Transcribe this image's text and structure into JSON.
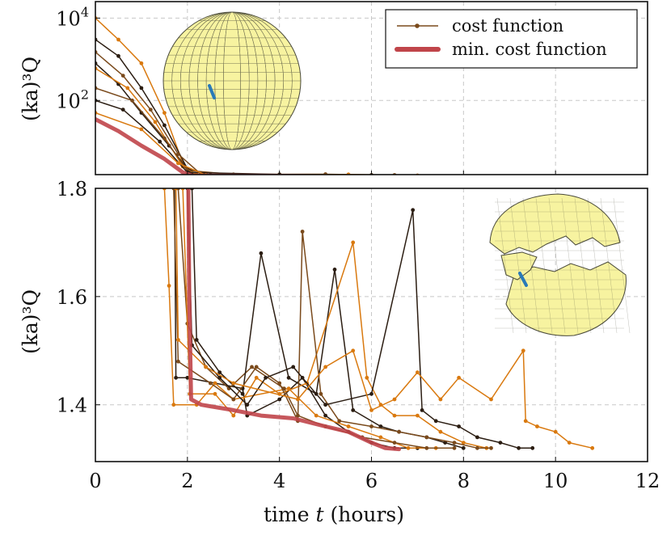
{
  "colors": {
    "dark": "#2b1d12",
    "brown": "#7a4a1c",
    "orange": "#d9790f",
    "min_line": "#c0454a",
    "grid": "#c8c8c8",
    "sphere_fill": "#f7f3a0",
    "mesh": "#4a4a3a",
    "defect": "#2a7ab8"
  },
  "legend": {
    "cost_label": "cost function",
    "min_label": "min. cost function"
  },
  "xlabel": {
    "prefix": "time ",
    "var": "t",
    "suffix": " (hours)"
  },
  "ylabel": "(ka)³Q",
  "chart_data": [
    {
      "type": "line",
      "panel": "top",
      "yscale": "log",
      "xlim": [
        0,
        12
      ],
      "ylim_exp": [
        0.2,
        4.4
      ],
      "ytick_labels": [
        {
          "base": "10",
          "exp": "2",
          "value": 100
        },
        {
          "base": "10",
          "exp": "4",
          "value": 10000
        }
      ],
      "series": [
        {
          "role": "cost",
          "color": "orange",
          "points": [
            [
              0,
              10000
            ],
            [
              0.5,
              3000
            ],
            [
              1.0,
              800
            ],
            [
              1.5,
              50
            ],
            [
              1.9,
              3
            ],
            [
              2.1,
              1.55
            ],
            [
              4.0,
              1.6
            ],
            [
              6.0,
              1.55
            ],
            [
              8.0,
              1.45
            ],
            [
              9.0,
              1.45
            ]
          ]
        },
        {
          "role": "cost",
          "color": "dark",
          "points": [
            [
              0,
              3000
            ],
            [
              0.5,
              1200
            ],
            [
              1.0,
              200
            ],
            [
              1.5,
              25
            ],
            [
              2.0,
              2.2
            ],
            [
              2.5,
              1.55
            ],
            [
              5.0,
              1.58
            ],
            [
              7.0,
              1.5
            ],
            [
              9.5,
              1.4
            ]
          ]
        },
        {
          "role": "cost",
          "color": "brown",
          "points": [
            [
              0,
              1500
            ],
            [
              0.6,
              400
            ],
            [
              1.2,
              60
            ],
            [
              1.8,
              5
            ],
            [
              2.3,
              1.6
            ],
            [
              5.0,
              1.62
            ],
            [
              8.0,
              1.45
            ],
            [
              8.5,
              1.4
            ]
          ]
        },
        {
          "role": "cost",
          "color": "dark",
          "points": [
            [
              0,
              800
            ],
            [
              0.5,
              250
            ],
            [
              1.0,
              50
            ],
            [
              1.6,
              8
            ],
            [
              2.1,
              1.6
            ],
            [
              6.0,
              1.55
            ],
            [
              7.5,
              1.4
            ]
          ]
        },
        {
          "role": "cost",
          "color": "orange",
          "points": [
            [
              0,
              600
            ],
            [
              0.7,
              200
            ],
            [
              1.3,
              30
            ],
            [
              1.9,
              2.5
            ],
            [
              2.2,
              1.6
            ],
            [
              7.0,
              1.5
            ],
            [
              10.8,
              1.4
            ]
          ]
        },
        {
          "role": "cost",
          "color": "brown",
          "points": [
            [
              0,
              200
            ],
            [
              0.8,
              100
            ],
            [
              1.5,
              12
            ],
            [
              2.0,
              2
            ],
            [
              3.0,
              1.6
            ],
            [
              6.5,
              1.55
            ]
          ]
        },
        {
          "role": "cost",
          "color": "dark",
          "points": [
            [
              0,
              100
            ],
            [
              0.6,
              60
            ],
            [
              1.4,
              10
            ],
            [
              2.0,
              1.8
            ],
            [
              4.0,
              1.6
            ],
            [
              8.2,
              1.4
            ]
          ]
        },
        {
          "role": "cost",
          "color": "orange",
          "points": [
            [
              0,
              50
            ],
            [
              1.0,
              20
            ],
            [
              1.8,
              3
            ],
            [
              2.4,
              1.55
            ],
            [
              5.5,
              1.6
            ],
            [
              9.3,
              1.4
            ]
          ]
        },
        {
          "role": "min",
          "color": "min_line",
          "points": [
            [
              0,
              35
            ],
            [
              0.5,
              18
            ],
            [
              1.0,
              8
            ],
            [
              1.5,
              3.8
            ],
            [
              1.9,
              1.8
            ],
            [
              2.1,
              1.5
            ],
            [
              4.0,
              1.48
            ],
            [
              6.0,
              1.4
            ],
            [
              6.6,
              1.32
            ]
          ]
        }
      ]
    },
    {
      "type": "line",
      "panel": "bottom",
      "xlim": [
        0,
        12
      ],
      "ylim": [
        1.295,
        1.8
      ],
      "xticks": [
        0,
        2,
        4,
        6,
        8,
        10,
        12
      ],
      "yticks": [
        1.4,
        1.6,
        1.8
      ],
      "ytick_labels": [
        "1.4",
        "1.6",
        "1.8"
      ],
      "series": [
        {
          "role": "cost",
          "color": "dark",
          "points": [
            [
              1.72,
              1.8
            ],
            [
              1.75,
              1.45
            ],
            [
              2.0,
              1.45
            ],
            [
              3.2,
              1.43
            ],
            [
              3.3,
              1.38
            ],
            [
              4.0,
              1.41
            ],
            [
              4.5,
              1.45
            ],
            [
              5.0,
              1.38
            ],
            [
              5.5,
              1.35
            ],
            [
              6.0,
              1.33
            ],
            [
              6.5,
              1.32
            ],
            [
              7.0,
              1.32
            ]
          ]
        },
        {
          "role": "cost",
          "color": "orange",
          "points": [
            [
              1.5,
              1.8
            ],
            [
              1.6,
              1.62
            ],
            [
              1.7,
              1.4
            ],
            [
              2.2,
              1.4
            ],
            [
              2.6,
              1.44
            ],
            [
              3.0,
              1.41
            ],
            [
              4.2,
              1.43
            ],
            [
              4.8,
              1.38
            ],
            [
              5.5,
              1.36
            ],
            [
              6.2,
              1.34
            ],
            [
              6.8,
              1.32
            ],
            [
              7.4,
              1.32
            ]
          ]
        },
        {
          "role": "cost",
          "color": "brown",
          "points": [
            [
              1.8,
              1.8
            ],
            [
              2.0,
              1.55
            ],
            [
              2.4,
              1.47
            ],
            [
              2.9,
              1.43
            ],
            [
              3.4,
              1.47
            ],
            [
              4.1,
              1.43
            ],
            [
              4.4,
              1.38
            ],
            [
              5.0,
              1.36
            ],
            [
              5.8,
              1.34
            ],
            [
              6.5,
              1.33
            ],
            [
              7.2,
              1.32
            ],
            [
              7.8,
              1.32
            ]
          ]
        },
        {
          "role": "cost",
          "color": "dark",
          "points": [
            [
              2.1,
              1.8
            ],
            [
              2.2,
              1.52
            ],
            [
              2.7,
              1.46
            ],
            [
              3.2,
              1.42
            ],
            [
              3.6,
              1.68
            ],
            [
              4.2,
              1.45
            ],
            [
              4.8,
              1.42
            ],
            [
              5.2,
              1.65
            ],
            [
              5.6,
              1.39
            ],
            [
              6.2,
              1.36
            ],
            [
              6.6,
              1.35
            ],
            [
              7.2,
              1.34
            ],
            [
              7.6,
              1.33
            ],
            [
              8.0,
              1.32
            ]
          ]
        },
        {
          "role": "cost",
          "color": "orange",
          "points": [
            [
              1.9,
              1.8
            ],
            [
              2.05,
              1.42
            ],
            [
              2.6,
              1.42
            ],
            [
              3.0,
              1.38
            ],
            [
              3.5,
              1.45
            ],
            [
              4.0,
              1.42
            ],
            [
              4.6,
              1.44
            ],
            [
              5.6,
              1.7
            ],
            [
              5.9,
              1.45
            ],
            [
              6.2,
              1.4
            ],
            [
              6.5,
              1.38
            ],
            [
              7.0,
              1.38
            ],
            [
              7.5,
              1.35
            ],
            [
              8.0,
              1.33
            ],
            [
              8.5,
              1.32
            ]
          ]
        },
        {
          "role": "cost",
          "color": "brown",
          "points": [
            [
              1.7,
              1.8
            ],
            [
              1.8,
              1.48
            ],
            [
              2.5,
              1.44
            ],
            [
              3.0,
              1.41
            ],
            [
              3.5,
              1.47
            ],
            [
              4.0,
              1.44
            ],
            [
              4.4,
              1.37
            ],
            [
              4.5,
              1.72
            ],
            [
              4.9,
              1.42
            ],
            [
              5.3,
              1.37
            ],
            [
              6.0,
              1.36
            ],
            [
              6.6,
              1.35
            ],
            [
              7.2,
              1.34
            ],
            [
              7.8,
              1.33
            ],
            [
              8.3,
              1.32
            ],
            [
              8.6,
              1.32
            ]
          ]
        },
        {
          "role": "cost",
          "color": "dark",
          "points": [
            [
              2.0,
              1.8
            ],
            [
              2.1,
              1.51
            ],
            [
              2.7,
              1.45
            ],
            [
              3.3,
              1.4
            ],
            [
              3.7,
              1.45
            ],
            [
              4.3,
              1.47
            ],
            [
              5.0,
              1.4
            ],
            [
              6.0,
              1.42
            ],
            [
              6.9,
              1.76
            ],
            [
              7.1,
              1.39
            ],
            [
              7.4,
              1.37
            ],
            [
              7.9,
              1.36
            ],
            [
              8.3,
              1.34
            ],
            [
              8.8,
              1.33
            ],
            [
              9.2,
              1.32
            ],
            [
              9.5,
              1.32
            ]
          ]
        },
        {
          "role": "cost",
          "color": "orange",
          "points": [
            [
              1.75,
              1.8
            ],
            [
              1.8,
              1.52
            ],
            [
              2.4,
              1.47
            ],
            [
              3.0,
              1.44
            ],
            [
              4.4,
              1.41
            ],
            [
              5.0,
              1.47
            ],
            [
              5.6,
              1.5
            ],
            [
              6.0,
              1.39
            ],
            [
              6.5,
              1.41
            ],
            [
              7.0,
              1.46
            ],
            [
              7.5,
              1.41
            ],
            [
              7.9,
              1.45
            ],
            [
              8.6,
              1.41
            ],
            [
              9.3,
              1.5
            ],
            [
              9.35,
              1.37
            ],
            [
              9.6,
              1.36
            ],
            [
              10.0,
              1.35
            ],
            [
              10.3,
              1.33
            ],
            [
              10.8,
              1.32
            ]
          ]
        },
        {
          "role": "min",
          "color": "min_line",
          "points": [
            [
              2.02,
              1.8
            ],
            [
              2.04,
              1.6
            ],
            [
              2.08,
              1.41
            ],
            [
              2.3,
              1.4
            ],
            [
              3.0,
              1.39
            ],
            [
              3.6,
              1.38
            ],
            [
              4.3,
              1.375
            ],
            [
              5.0,
              1.36
            ],
            [
              5.5,
              1.35
            ],
            [
              6.0,
              1.33
            ],
            [
              6.3,
              1.32
            ],
            [
              6.6,
              1.318
            ]
          ]
        }
      ]
    }
  ]
}
